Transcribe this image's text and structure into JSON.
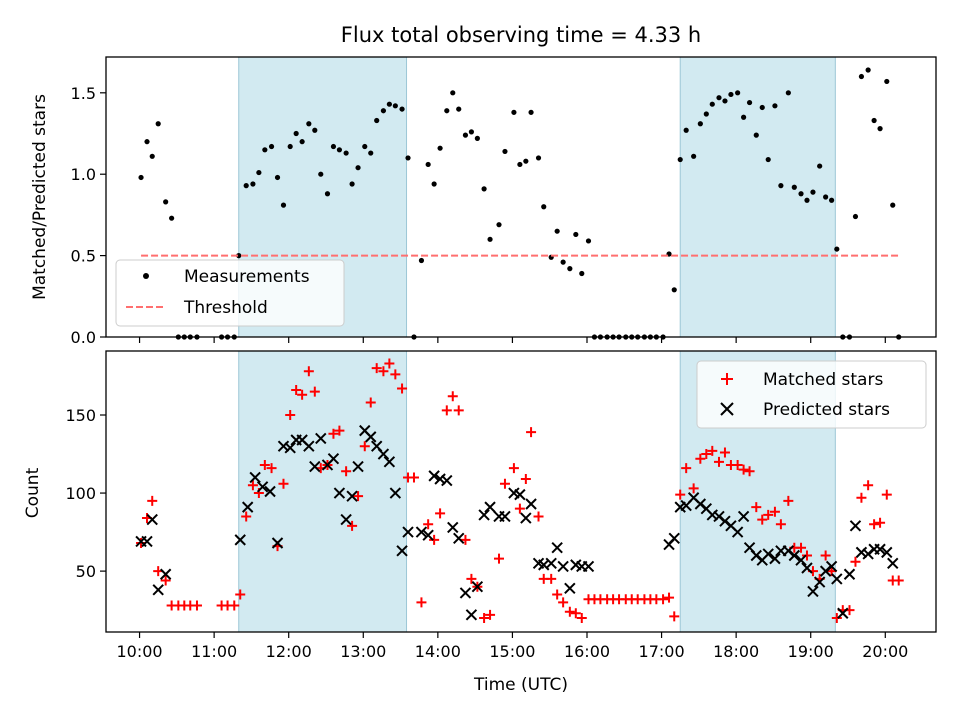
{
  "chart_data": {
    "title": "Flux total observing time = 4.33 h",
    "xlabel": "Time (UTC)",
    "x_ticks": [
      "10:00",
      "11:00",
      "12:00",
      "13:00",
      "14:00",
      "15:00",
      "16:00",
      "17:00",
      "18:00",
      "19:00",
      "20:00"
    ],
    "x_range_hours": [
      9.55,
      20.68
    ],
    "shaded_intervals_hours": [
      [
        11.33,
        13.58
      ],
      [
        17.25,
        19.33
      ]
    ],
    "shade_color": "#add8e6",
    "panels": [
      {
        "type": "scatter",
        "ylabel": "Matched/Predicted stars",
        "ylim": [
          0,
          1.72
        ],
        "y_ticks": [
          0.0,
          0.5,
          1.0,
          1.5
        ],
        "y_tick_labels": [
          "0.0",
          "0.5",
          "1.0",
          "1.5"
        ],
        "legend_position": "lower-left",
        "series": [
          {
            "name": "Measurements",
            "marker": "dot",
            "color": "#000000",
            "x": [
              10.02,
              10.1,
              10.17,
              10.25,
              10.35,
              10.43,
              10.52,
              10.6,
              10.68,
              10.77,
              11.1,
              11.18,
              11.27,
              11.33,
              11.43,
              11.52,
              11.6,
              11.68,
              11.77,
              11.85,
              11.93,
              12.02,
              12.1,
              12.18,
              12.27,
              12.35,
              12.43,
              12.52,
              12.6,
              12.68,
              12.77,
              12.85,
              12.93,
              13.02,
              13.1,
              13.18,
              13.27,
              13.35,
              13.43,
              13.52,
              13.6,
              13.68,
              13.78,
              13.87,
              13.95,
              14.03,
              14.12,
              14.2,
              14.28,
              14.37,
              14.45,
              14.53,
              14.62,
              14.7,
              14.82,
              14.9,
              15.02,
              15.1,
              15.18,
              15.25,
              15.35,
              15.42,
              15.52,
              15.6,
              15.68,
              15.77,
              15.85,
              15.93,
              16.02,
              16.1,
              16.18,
              16.27,
              16.35,
              16.43,
              16.52,
              16.6,
              16.68,
              16.77,
              16.85,
              16.93,
              17.02,
              17.1,
              17.17,
              17.25,
              17.33,
              17.43,
              17.52,
              17.6,
              17.68,
              17.77,
              17.85,
              17.93,
              18.02,
              18.1,
              18.18,
              18.27,
              18.35,
              18.43,
              18.52,
              18.6,
              18.7,
              18.78,
              18.87,
              18.95,
              19.03,
              19.12,
              19.2,
              19.28,
              19.35,
              19.43,
              19.52,
              19.6,
              19.68,
              19.77,
              19.85,
              19.93,
              20.02,
              20.1,
              20.18
            ],
            "y": [
              0.98,
              1.2,
              1.11,
              1.31,
              0.83,
              0.73,
              0.0,
              0.0,
              0.0,
              0.0,
              0.0,
              0.0,
              0.0,
              0.5,
              0.93,
              0.94,
              1.01,
              1.15,
              1.17,
              0.98,
              0.81,
              1.17,
              1.25,
              1.2,
              1.31,
              1.27,
              1.0,
              0.88,
              1.17,
              1.15,
              1.13,
              0.94,
              1.04,
              1.17,
              1.13,
              1.33,
              1.39,
              1.43,
              1.42,
              1.4,
              1.1,
              0.0,
              0.47,
              1.06,
              0.94,
              1.16,
              1.39,
              1.5,
              1.4,
              1.24,
              1.26,
              1.22,
              0.91,
              0.6,
              0.69,
              1.14,
              1.38,
              1.06,
              1.08,
              1.38,
              1.1,
              0.8,
              0.49,
              0.65,
              0.46,
              0.42,
              0.63,
              0.39,
              0.59,
              0.0,
              0.0,
              0.0,
              0.0,
              0.0,
              0.0,
              0.0,
              0.0,
              0.0,
              0.0,
              0.0,
              0.0,
              0.51,
              0.29,
              1.09,
              1.27,
              1.11,
              1.31,
              1.37,
              1.43,
              1.47,
              1.45,
              1.49,
              1.5,
              1.35,
              1.44,
              1.24,
              1.41,
              1.09,
              1.42,
              0.93,
              1.5,
              0.92,
              0.88,
              0.84,
              0.89,
              1.05,
              0.86,
              0.84,
              0.54,
              0.0,
              0.0,
              0.74,
              1.6,
              1.64,
              1.33,
              1.28,
              1.57,
              0.81,
              0.0
            ]
          },
          {
            "name": "Threshold",
            "type": "line",
            "style": "dashed",
            "color": "#ff6f6f",
            "x": [
              10.02,
              20.2
            ],
            "y": [
              0.5,
              0.5
            ]
          }
        ]
      },
      {
        "type": "scatter",
        "ylabel": "Count",
        "ylim": [
          11,
          191
        ],
        "y_ticks": [
          50,
          100,
          150
        ],
        "y_tick_labels": [
          "50",
          "100",
          "150"
        ],
        "legend_position": "upper-right",
        "series": [
          {
            "name": "Matched stars",
            "marker": "plus",
            "color": "#ff0000",
            "x": [
              10.02,
              10.1,
              10.17,
              10.25,
              10.35,
              10.43,
              10.52,
              10.6,
              10.68,
              10.77,
              11.1,
              11.18,
              11.27,
              11.35,
              11.43,
              11.52,
              11.6,
              11.68,
              11.77,
              11.85,
              11.93,
              12.02,
              12.1,
              12.18,
              12.27,
              12.35,
              12.43,
              12.52,
              12.6,
              12.68,
              12.77,
              12.85,
              12.93,
              13.02,
              13.1,
              13.18,
              13.27,
              13.35,
              13.43,
              13.52,
              13.6,
              13.68,
              13.78,
              13.87,
              13.95,
              14.03,
              14.12,
              14.2,
              14.28,
              14.37,
              14.45,
              14.53,
              14.62,
              14.7,
              14.82,
              14.9,
              15.02,
              15.1,
              15.18,
              15.25,
              15.35,
              15.42,
              15.52,
              15.6,
              15.68,
              15.77,
              15.85,
              15.93,
              16.02,
              16.1,
              16.18,
              16.27,
              16.35,
              16.43,
              16.52,
              16.6,
              16.68,
              16.77,
              16.85,
              16.93,
              17.02,
              17.1,
              17.17,
              17.25,
              17.33,
              17.43,
              17.52,
              17.6,
              17.68,
              17.77,
              17.85,
              17.93,
              18.02,
              18.1,
              18.18,
              18.27,
              18.35,
              18.43,
              18.52,
              18.6,
              18.7,
              18.78,
              18.87,
              18.95,
              19.03,
              19.12,
              19.2,
              19.28,
              19.35,
              19.43,
              19.52,
              19.6,
              19.68,
              19.77,
              19.85,
              19.93,
              20.02,
              20.1,
              20.18
            ],
            "y": [
              68,
              84,
              95,
              50,
              44,
              28,
              28,
              28,
              28,
              28,
              28,
              28,
              28,
              35,
              85,
              105,
              100,
              118,
              116,
              66,
              106,
              150,
              166,
              163,
              178,
              165,
              116,
              118,
              138,
              140,
              114,
              79,
              98,
              130,
              158,
              180,
              178,
              183,
              176,
              167,
              110,
              110,
              30,
              80,
              70,
              87,
              153,
              162,
              153,
              70,
              45,
              40,
              20,
              22,
              58,
              106,
              116,
              90,
              109,
              139,
              85,
              45,
              45,
              35,
              30,
              24,
              23,
              20,
              32,
              32,
              32,
              32,
              32,
              32,
              32,
              32,
              32,
              32,
              32,
              32,
              32,
              33,
              21,
              99,
              116,
              103,
              122,
              125,
              127,
              120,
              126,
              118,
              118,
              115,
              114,
              91,
              83,
              86,
              88,
              80,
              95,
              65,
              65,
              60,
              50,
              45,
              60,
              50,
              20,
              25,
              25,
              56,
              97,
              105,
              80,
              81,
              99,
              44,
              44
            ]
          },
          {
            "name": "Predicted stars",
            "marker": "x",
            "color": "#000000",
            "x": [
              10.02,
              10.1,
              10.17,
              10.25,
              10.35,
              11.35,
              11.45,
              11.55,
              11.65,
              11.75,
              11.85,
              11.93,
              12.02,
              12.1,
              12.18,
              12.27,
              12.35,
              12.43,
              12.52,
              12.6,
              12.68,
              12.77,
              12.85,
              12.93,
              13.02,
              13.1,
              13.18,
              13.27,
              13.35,
              13.43,
              13.52,
              13.6,
              13.78,
              13.87,
              13.95,
              14.03,
              14.12,
              14.2,
              14.28,
              14.37,
              14.45,
              14.53,
              14.62,
              14.7,
              14.82,
              14.9,
              15.02,
              15.1,
              15.18,
              15.25,
              15.35,
              15.42,
              15.52,
              15.6,
              15.68,
              15.77,
              15.85,
              15.93,
              16.02,
              17.1,
              17.17,
              17.25,
              17.33,
              17.43,
              17.52,
              17.6,
              17.68,
              17.77,
              17.85,
              17.93,
              18.02,
              18.1,
              18.18,
              18.27,
              18.35,
              18.43,
              18.52,
              18.6,
              18.7,
              18.78,
              18.87,
              18.95,
              19.03,
              19.12,
              19.2,
              19.28,
              19.35,
              19.43,
              19.52,
              19.6,
              19.68,
              19.77,
              19.85,
              19.93,
              20.02,
              20.1
            ],
            "y": [
              69,
              69,
              83,
              38,
              48,
              70,
              91,
              110,
              104,
              101,
              68,
              130,
              129,
              134,
              134,
              130,
              117,
              135,
              118,
              122,
              100,
              83,
              98,
              117,
              140,
              136,
              130,
              125,
              120,
              100,
              63,
              75,
              75,
              73,
              111,
              109,
              108,
              78,
              71,
              36,
              22,
              40,
              86,
              91,
              85,
              85,
              100,
              99,
              84,
              93,
              55,
              54,
              55,
              65,
              53,
              39,
              54,
              53,
              53,
              67,
              71,
              91,
              92,
              97,
              93,
              90,
              86,
              85,
              82,
              79,
              75,
              85,
              65,
              60,
              57,
              61,
              58,
              63,
              63,
              60,
              57,
              52,
              37,
              43,
              50,
              53,
              45,
              23,
              48,
              79,
              62,
              61,
              64,
              64,
              62,
              55
            ]
          }
        ]
      }
    ]
  }
}
